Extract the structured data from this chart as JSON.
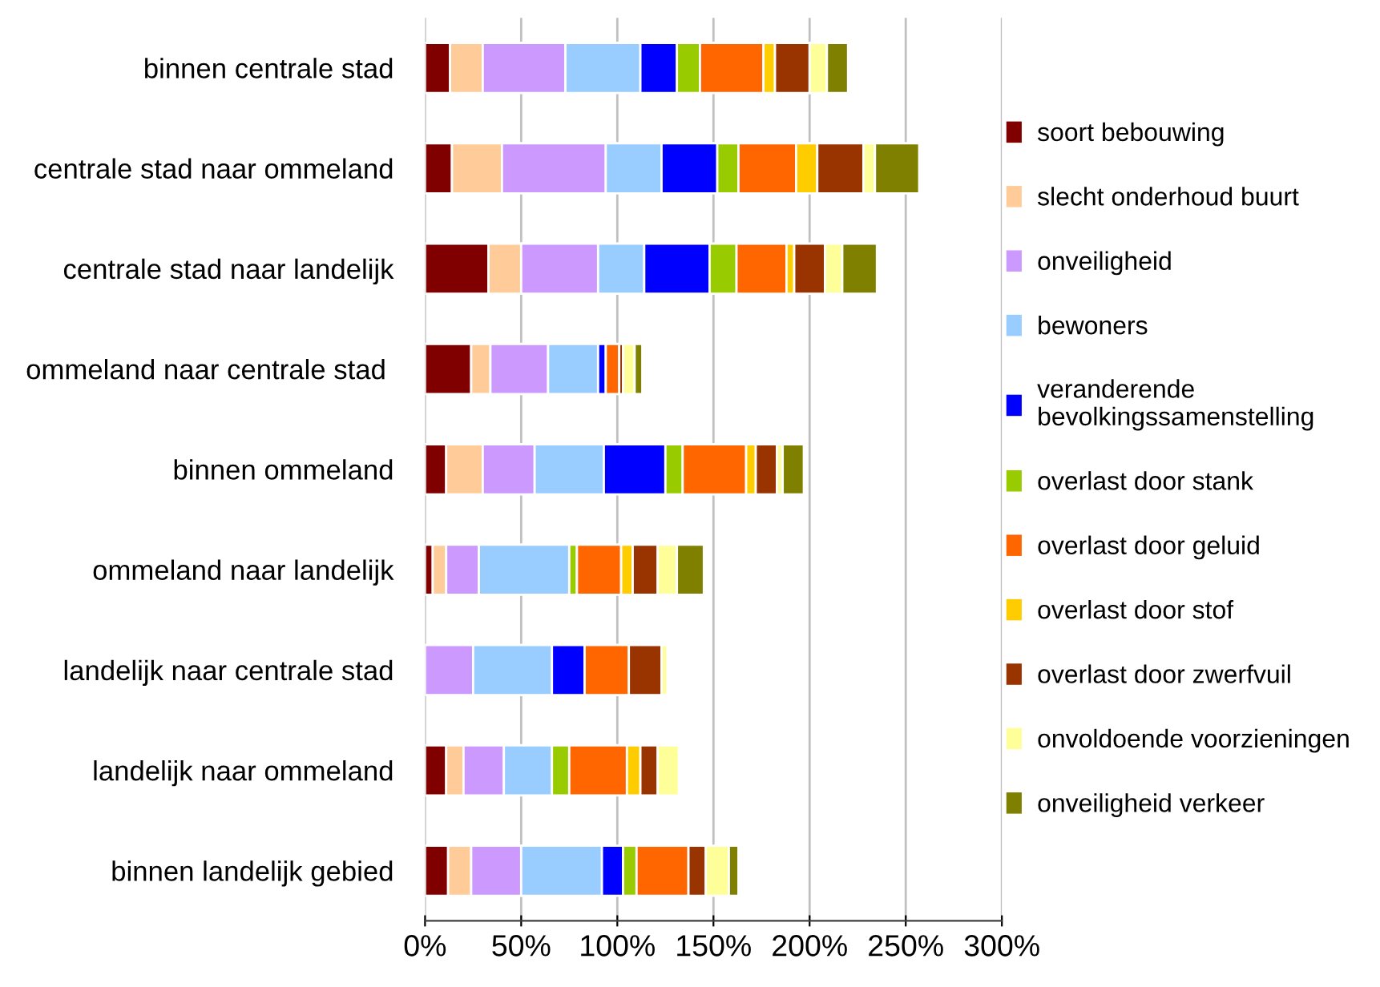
{
  "chart_data": {
    "type": "bar",
    "orientation": "horizontal",
    "stacked": true,
    "categories": [
      "binnen centrale stad",
      "centrale stad naar ommeland",
      "centrale stad naar landelijk",
      "ommeland naar centrale stad ",
      "binnen ommeland",
      "ommeland naar landelijk",
      "landelijk naar centrale stad",
      "landelijk naar ommeland",
      "binnen landelijk gebied"
    ],
    "series": [
      {
        "name": "soort bebouwing",
        "color": "#800000",
        "values": [
          13,
          14,
          33,
          24,
          11,
          4,
          null,
          11,
          12
        ]
      },
      {
        "name": "slecht onderhoud buurt",
        "color": "#ffcc99",
        "values": [
          17,
          26,
          17,
          10,
          19,
          7,
          null,
          9,
          12
        ]
      },
      {
        "name": "onveiligheid",
        "color": "#cc99ff",
        "values": [
          43,
          54,
          40,
          30,
          27,
          17,
          25,
          21,
          26
        ]
      },
      {
        "name": "bewoners",
        "color": "#99ccff",
        "values": [
          39,
          29,
          24,
          26,
          36,
          47,
          41,
          25,
          42
        ]
      },
      {
        "name": "veranderende\nbevolkingssamenstelling",
        "color": "#0000ff",
        "values": [
          19,
          29,
          34,
          4,
          32,
          null,
          17,
          null,
          11
        ]
      },
      {
        "name": "overlast door stank",
        "color": "#99cc00",
        "values": [
          12,
          11,
          14,
          null,
          9,
          4,
          null,
          9,
          7
        ]
      },
      {
        "name": "overlast door geluid",
        "color": "#ff6600",
        "values": [
          33,
          30,
          26,
          7,
          33,
          23,
          23,
          30,
          27
        ]
      },
      {
        "name": "overlast door stof",
        "color": "#ffcc00",
        "values": [
          6,
          11,
          4,
          null,
          5,
          6,
          null,
          7,
          null
        ]
      },
      {
        "name": "overlast door zwerfvuil",
        "color": "#993300",
        "values": [
          18,
          24,
          16,
          2,
          11,
          13,
          17,
          9,
          9
        ]
      },
      {
        "name": "onvoldoende voorzieningen",
        "color": "#ffff99",
        "values": [
          9,
          6,
          9,
          6,
          3,
          10,
          3,
          11,
          12
        ]
      },
      {
        "name": "onveiligheid verkeer",
        "color": "#808000",
        "values": [
          11,
          23,
          18,
          4,
          11,
          14,
          null,
          null,
          5
        ]
      }
    ],
    "xlim": [
      0,
      300
    ],
    "xticks": [
      {
        "value": 0,
        "label": "0%"
      },
      {
        "value": 50,
        "label": "50%"
      },
      {
        "value": 100,
        "label": "100%"
      },
      {
        "value": 150,
        "label": "150%"
      },
      {
        "value": 200,
        "label": "200%"
      },
      {
        "value": 250,
        "label": "250%"
      },
      {
        "value": 300,
        "label": "300%"
      }
    ],
    "grid": "x",
    "legend": "right"
  }
}
